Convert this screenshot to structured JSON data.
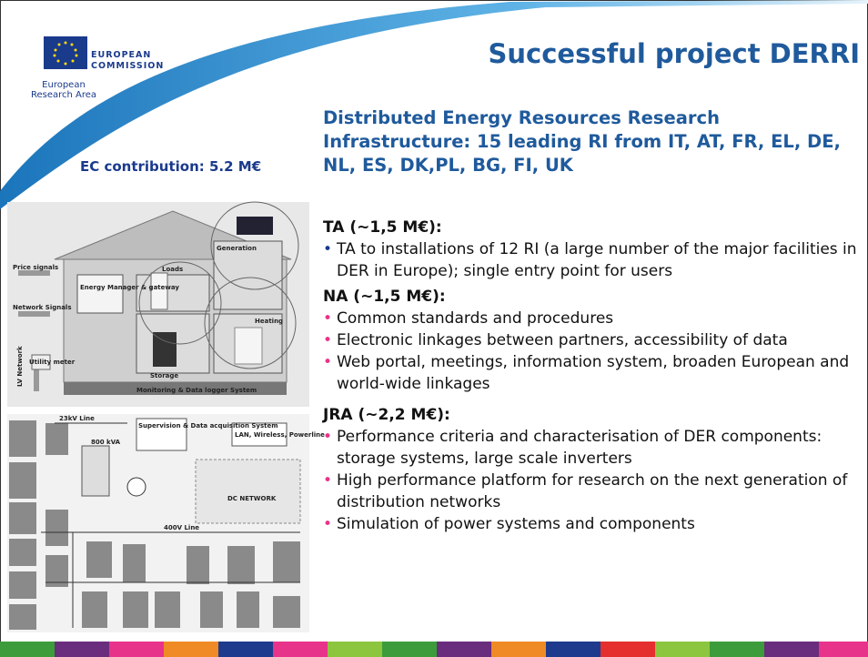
{
  "header": {
    "logo": {
      "line1": "EUROPEAN",
      "line2": "COMMISSION",
      "sub": "European Research Area"
    },
    "title": "Successful project DERRI"
  },
  "subtitle": "Distributed Energy Resources Research Infrastructure: 15 leading RI from IT, AT, FR, EL, DE, NL, ES, DK,PL, BG, FI, UK",
  "ec_contribution": "EC contribution: 5.2 M€",
  "sections": [
    {
      "heading": "TA (~1,5 M€):",
      "bullets": [
        "TA to installations of 12 RI (a large number of the major facilities in DER in Europe); single entry point for users"
      ]
    },
    {
      "heading": "NA (~1,5 M€):",
      "bullets": [
        "Common standards and procedures",
        "Electronic linkages between partners, accessibility of data",
        "Web portal, meetings, information system, broaden European and world-wide linkages"
      ]
    },
    {
      "heading": "JRA (~2,2 M€):",
      "bullets": [
        "Performance criteria and characterisation of DER components: storage systems, large scale inverters",
        "High performance platform for research on the next generation of distribution networks",
        "Simulation of power systems and components"
      ]
    }
  ],
  "diagram_top": {
    "labels": [
      "Price signals",
      "Network Signals",
      "Energy Manager & gateway",
      "Loads",
      "Generation",
      "Storage",
      "Heating",
      "LV Network",
      "Utility meter",
      "Monitoring & Data logger System"
    ]
  },
  "diagram_bottom": {
    "labels": [
      "23kV Line",
      "800 kVA",
      "Supervision & Data acquisition System",
      "LAN, Wireless, Powerline",
      "DC NETWORK",
      "400V Line"
    ]
  }
}
